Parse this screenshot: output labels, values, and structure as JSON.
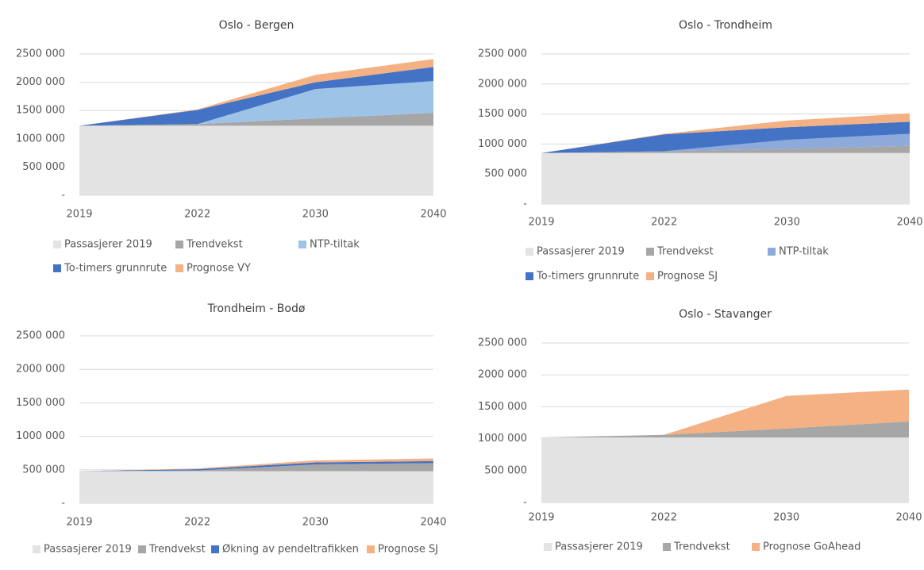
{
  "chart_data": [
    {
      "type": "stacked_area",
      "title": "Oslo - Bergen",
      "categories": [
        "2019",
        "2022",
        "2030",
        "2040"
      ],
      "ylim": [
        0,
        2500000
      ],
      "yticks": [
        {
          "value": 0,
          "label": "-"
        },
        {
          "value": 500000,
          "label": "500 000"
        },
        {
          "value": 1000000,
          "label": "1000 000"
        },
        {
          "value": 1500000,
          "label": "1500 000"
        },
        {
          "value": 2000000,
          "label": "2000 000"
        },
        {
          "value": 2500000,
          "label": "2500 000"
        }
      ],
      "grid": true,
      "series": [
        {
          "name": "Passasjerer 2019",
          "color": "#e3e3e3",
          "values": [
            1230000,
            1230000,
            1230000,
            1230000
          ]
        },
        {
          "name": "Trendvekst",
          "color": "#a6a6a6",
          "values": [
            0,
            30000,
            130000,
            230000
          ]
        },
        {
          "name": "NTP-tiltak",
          "color": "#9dc3e6",
          "values": [
            0,
            0,
            520000,
            560000
          ]
        },
        {
          "name": "To-timers grunnrute",
          "color": "#4472c4",
          "values": [
            0,
            250000,
            120000,
            250000
          ]
        },
        {
          "name": "Prognose VY",
          "color": "#f4b183",
          "values": [
            0,
            10000,
            130000,
            140000
          ]
        }
      ]
    },
    {
      "type": "stacked_area",
      "title": "Oslo - Trondheim",
      "categories": [
        "2019",
        "2022",
        "2030",
        "2040"
      ],
      "ylim": [
        0,
        2500000
      ],
      "yticks": [
        {
          "value": 0,
          "label": "-"
        },
        {
          "value": 500000,
          "label": "500 000"
        },
        {
          "value": 1000000,
          "label": "1000 000"
        },
        {
          "value": 1500000,
          "label": "1500 000"
        },
        {
          "value": 2000000,
          "label": "2000 000"
        },
        {
          "value": 2500000,
          "label": "2500 000"
        }
      ],
      "grid": true,
      "series": [
        {
          "name": "Passasjerer 2019",
          "color": "#e3e3e3",
          "values": [
            850000,
            850000,
            850000,
            850000
          ]
        },
        {
          "name": "Trendvekst",
          "color": "#a6a6a6",
          "values": [
            0,
            30000,
            70000,
            120000
          ]
        },
        {
          "name": "NTP-tiltak",
          "color": "#8eaadb",
          "values": [
            0,
            0,
            150000,
            200000
          ]
        },
        {
          "name": "To-timers grunnrute",
          "color": "#4472c4",
          "values": [
            0,
            280000,
            210000,
            200000
          ]
        },
        {
          "name": "Prognose SJ",
          "color": "#f4b183",
          "values": [
            0,
            10000,
            110000,
            140000
          ]
        }
      ]
    },
    {
      "type": "stacked_area",
      "title": "Trondheim - Bodø",
      "categories": [
        "2019",
        "2022",
        "2030",
        "2040"
      ],
      "ylim": [
        0,
        2500000
      ],
      "yticks": [
        {
          "value": 0,
          "label": "-"
        },
        {
          "value": 500000,
          "label": "500 000"
        },
        {
          "value": 1000000,
          "label": "1000 000"
        },
        {
          "value": 1500000,
          "label": "1500 000"
        },
        {
          "value": 2000000,
          "label": "2000 000"
        },
        {
          "value": 2500000,
          "label": "2500 000"
        }
      ],
      "grid": true,
      "series": [
        {
          "name": "Passasjerer 2019",
          "color": "#e3e3e3",
          "values": [
            480000,
            480000,
            480000,
            480000
          ]
        },
        {
          "name": "Trendvekst",
          "color": "#a6a6a6",
          "values": [
            0,
            10000,
            100000,
            120000
          ]
        },
        {
          "name": "Økning av pendeltrafikken",
          "color": "#4472c4",
          "values": [
            0,
            20000,
            30000,
            30000
          ]
        },
        {
          "name": "Prognose SJ",
          "color": "#f4b183",
          "values": [
            0,
            10000,
            30000,
            40000
          ]
        }
      ]
    },
    {
      "type": "stacked_area",
      "title": "Oslo - Stavanger",
      "categories": [
        "2019",
        "2022",
        "2030",
        "2040"
      ],
      "ylim": [
        0,
        2500000
      ],
      "yticks": [
        {
          "value": 0,
          "label": "-"
        },
        {
          "value": 500000,
          "label": "500 000"
        },
        {
          "value": 1000000,
          "label": "1000 000"
        },
        {
          "value": 1500000,
          "label": "1500 000"
        },
        {
          "value": 2000000,
          "label": "2000 000"
        },
        {
          "value": 2500000,
          "label": "2500 000"
        }
      ],
      "grid": true,
      "series": [
        {
          "name": "Passasjerer 2019",
          "color": "#e3e3e3",
          "values": [
            1020000,
            1020000,
            1020000,
            1020000
          ]
        },
        {
          "name": "Trendvekst",
          "color": "#a6a6a6",
          "values": [
            0,
            40000,
            140000,
            250000
          ]
        },
        {
          "name": "Prognose GoAhead",
          "color": "#f4b183",
          "values": [
            0,
            0,
            510000,
            500000
          ]
        }
      ]
    }
  ]
}
